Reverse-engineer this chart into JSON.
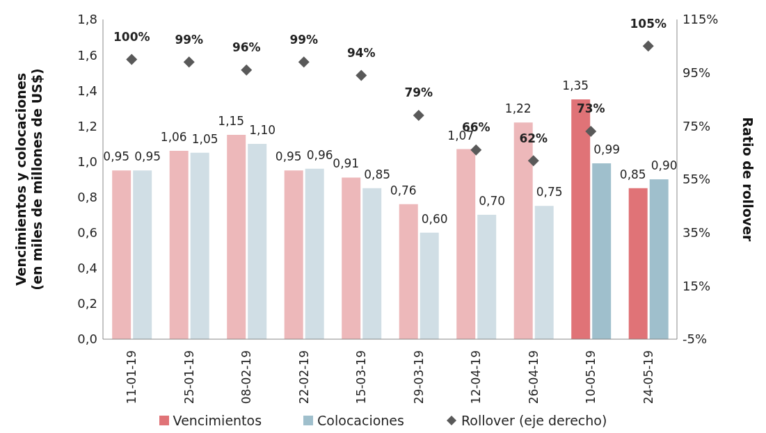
{
  "chart_data": {
    "type": "bar",
    "categories": [
      "11-01-19",
      "25-01-19",
      "08-02-19",
      "22-02-19",
      "15-03-19",
      "29-03-19",
      "12-04-19",
      "26-04-19",
      "10-05-19",
      "24-05-19"
    ],
    "ylabel": "Vencimientos y colocaciones\n(en miles de millones de US$)",
    "y2label": "Ratio de rollover",
    "ylim": [
      0,
      1.8
    ],
    "yticks": [
      {
        "value": 0,
        "label": "0,0"
      },
      {
        "value": 0.2,
        "label": "0,2"
      },
      {
        "value": 0.4,
        "label": "0,4"
      },
      {
        "value": 0.6,
        "label": "0,6"
      },
      {
        "value": 0.8,
        "label": "0,8"
      },
      {
        "value": 1.0,
        "label": "1,0"
      },
      {
        "value": 1.2,
        "label": "1,2"
      },
      {
        "value": 1.4,
        "label": "1,4"
      },
      {
        "value": 1.6,
        "label": "1,6"
      },
      {
        "value": 1.8,
        "label": "1,8"
      }
    ],
    "y2lim": [
      -5,
      115
    ],
    "y2ticks": [
      {
        "value": -5,
        "label": "-5%"
      },
      {
        "value": 15,
        "label": "15%"
      },
      {
        "value": 35,
        "label": "35%"
      },
      {
        "value": 55,
        "label": "55%"
      },
      {
        "value": 75,
        "label": "75%"
      },
      {
        "value": 95,
        "label": "95%"
      },
      {
        "value": 115,
        "label": "115%"
      }
    ],
    "grid": false,
    "legend": "bottom",
    "series": [
      {
        "name": "Vencimientos",
        "color": "#e07377",
        "colors": [
          "#edb8ba",
          "#edb8ba",
          "#edb8ba",
          "#edb8ba",
          "#edb8ba",
          "#edb8ba",
          "#edb8ba",
          "#edb8ba",
          "#e07377",
          "#e07377"
        ],
        "values": [
          0.95,
          1.06,
          1.15,
          0.95,
          0.91,
          0.76,
          1.07,
          1.22,
          1.35,
          0.85
        ],
        "value_labels": [
          "0,95",
          "1,06",
          "1,15",
          "0,95",
          "0,91",
          "0,76",
          "1,07",
          "1,22",
          "1,35",
          "0,85"
        ]
      },
      {
        "name": "Colocaciones",
        "color": "#9fbfcc",
        "colors": [
          "#d0dee5",
          "#d0dee5",
          "#d0dee5",
          "#d0dee5",
          "#d0dee5",
          "#d0dee5",
          "#d0dee5",
          "#d0dee5",
          "#9fbfcc",
          "#9fbfcc"
        ],
        "values": [
          0.95,
          1.05,
          1.1,
          0.96,
          0.85,
          0.6,
          0.7,
          0.75,
          0.99,
          0.9
        ],
        "value_labels": [
          "0,95",
          "1,05",
          "1,10",
          "0,96",
          "0,85",
          "0,60",
          "0,70",
          "0,75",
          "0,99",
          "0,90"
        ]
      },
      {
        "name": "Rollover (eje derecho)",
        "type": "scatter",
        "axis": "y2",
        "marker": "diamond",
        "color": "#595959",
        "values": [
          100,
          99,
          96,
          99,
          94,
          79,
          66,
          62,
          73,
          105
        ],
        "value_labels": [
          "100%",
          "99%",
          "96%",
          "99%",
          "94%",
          "79%",
          "66%",
          "62%",
          "73%",
          "105%"
        ]
      }
    ]
  }
}
